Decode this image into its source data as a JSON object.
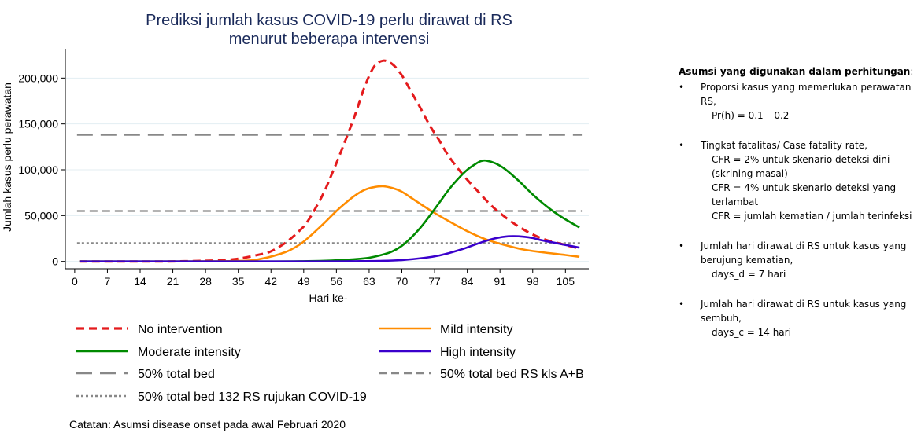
{
  "chart_data": {
    "type": "line",
    "title_lines": [
      "Prediksi jumlah kasus COVID-19 perlu dirawat di RS",
      "menurut beberapa intervensi"
    ],
    "xlabel": "Hari ke-",
    "ylabel": "Jumlah kasus perlu perawatan",
    "xlim": [
      -2,
      110
    ],
    "ylim": [
      -8000,
      232000
    ],
    "xticks": [
      0,
      7,
      14,
      21,
      28,
      35,
      42,
      49,
      56,
      63,
      70,
      77,
      84,
      91,
      98,
      105
    ],
    "xtick_labels": [
      "0",
      "7",
      "14",
      "21",
      "28",
      "35",
      "42",
      "49",
      "56",
      "63",
      "70",
      "77",
      "84",
      "91",
      "98",
      "105"
    ],
    "yticks": [
      0,
      50000,
      100000,
      150000,
      200000
    ],
    "ytick_labels": [
      "0",
      "50,000",
      "100,000",
      "150,000",
      "200,000"
    ],
    "grid": "horizontal",
    "series": [
      {
        "name": "No intervention",
        "color": "#e41a1c",
        "dash": "dashed",
        "x": [
          1,
          10,
          20,
          30,
          35,
          40,
          42,
          45,
          48,
          50,
          53,
          55,
          57,
          60,
          62,
          64,
          66,
          68,
          70,
          72,
          74,
          76,
          78,
          80,
          83,
          86,
          90,
          95,
          100,
          105,
          108
        ],
        "y": [
          0,
          0,
          0,
          1000,
          3000,
          8000,
          11000,
          20000,
          33000,
          45000,
          72000,
          95000,
          120000,
          160000,
          190000,
          212000,
          219000,
          215000,
          203000,
          185000,
          167000,
          148000,
          132000,
          115000,
          95000,
          78000,
          57000,
          38000,
          25000,
          18000,
          14000
        ]
      },
      {
        "name": "Mild intensity",
        "color": "#ff8c00",
        "dash": "solid",
        "x": [
          1,
          20,
          35,
          40,
          45,
          48,
          50,
          53,
          56,
          58,
          60,
          62,
          64,
          66,
          68,
          70,
          73,
          76,
          80,
          84,
          88,
          92,
          96,
          100,
          105,
          108
        ],
        "y": [
          0,
          0,
          500,
          3000,
          10000,
          18000,
          26000,
          40000,
          55000,
          64000,
          72000,
          78000,
          81000,
          82000,
          80000,
          76000,
          66000,
          56000,
          44000,
          33000,
          24000,
          18000,
          13000,
          10000,
          7000,
          5000
        ]
      },
      {
        "name": "Moderate intensity",
        "color": "#008a00",
        "dash": "solid",
        "x": [
          1,
          40,
          50,
          55,
          60,
          63,
          66,
          68,
          70,
          72,
          74,
          76,
          78,
          80,
          82,
          84,
          86,
          87,
          88,
          90,
          92,
          95,
          98,
          101,
          104,
          108
        ],
        "y": [
          0,
          0,
          300,
          1000,
          2500,
          4000,
          7500,
          11000,
          17000,
          26000,
          37000,
          50000,
          64000,
          78000,
          90000,
          100000,
          107000,
          109500,
          110000,
          107000,
          101000,
          88000,
          73000,
          60000,
          49000,
          37000
        ]
      },
      {
        "name": "High intensity",
        "color": "#3a00cc",
        "dash": "solid",
        "x": [
          1,
          50,
          60,
          65,
          70,
          75,
          78,
          80,
          83,
          86,
          89,
          92,
          94,
          96,
          98,
          100,
          103,
          106,
          108
        ],
        "y": [
          0,
          0,
          200,
          500,
          1500,
          4000,
          6500,
          9000,
          13500,
          19000,
          24000,
          27000,
          27500,
          27000,
          25500,
          23000,
          20000,
          17000,
          15000
        ]
      }
    ],
    "reference_lines": [
      {
        "name": "50% total bed",
        "y": 138000,
        "color": "#888888",
        "dash": "longdash"
      },
      {
        "name": "50% total bed RS kls A+B",
        "y": 55000,
        "color": "#888888",
        "dash": "dashed"
      },
      {
        "name": "50% total bed 132 RS rujukan COVID-19",
        "y": 20000,
        "color": "#888888",
        "dash": "dotted"
      }
    ],
    "legend": [
      {
        "label": "No intervention",
        "color": "#e41a1c",
        "dash": "dashed"
      },
      {
        "label": "Mild intensity",
        "color": "#ff8c00",
        "dash": "solid"
      },
      {
        "label": "Moderate intensity",
        "color": "#008a00",
        "dash": "solid"
      },
      {
        "label": "High intensity",
        "color": "#3a00cc",
        "dash": "solid"
      },
      {
        "label": "50% total bed",
        "color": "#888888",
        "dash": "longdash"
      },
      {
        "label": "50% total bed RS kls A+B",
        "color": "#888888",
        "dash": "dashed"
      },
      {
        "label": "50% total bed 132 RS rujukan COVID-19",
        "color": "#888888",
        "dash": "dotted"
      }
    ],
    "note": "Catatan: Asumsi disease onset pada awal Februari 2020"
  },
  "assumptions": {
    "header": "Asumsi yang digunakan dalam perhitungan",
    "header_suffix": ":",
    "bullet": "•",
    "items": [
      {
        "lines": [
          "Proporsi kasus yang memerlukan perawatan RS,"
        ],
        "sub": [
          "Pr(h) = 0.1 – 0.2"
        ]
      },
      {
        "lines": [
          "Tingkat fatalitas/ Case fatality rate,"
        ],
        "sub": [
          "CFR = 2% untuk skenario deteksi dini (skrining masal)",
          "CFR = 4% untuk skenario deteksi yang terlambat",
          "CFR = jumlah kematian / jumlah terinfeksi"
        ]
      },
      {
        "lines": [
          "Jumlah hari dirawat di RS untuk kasus yang berujung kematian,"
        ],
        "sub": [
          "days_d = 7 hari"
        ]
      },
      {
        "lines": [
          "Jumlah hari dirawat di RS untuk kasus yang sembuh,"
        ],
        "sub": [
          "days_c = 14 hari"
        ]
      }
    ]
  }
}
